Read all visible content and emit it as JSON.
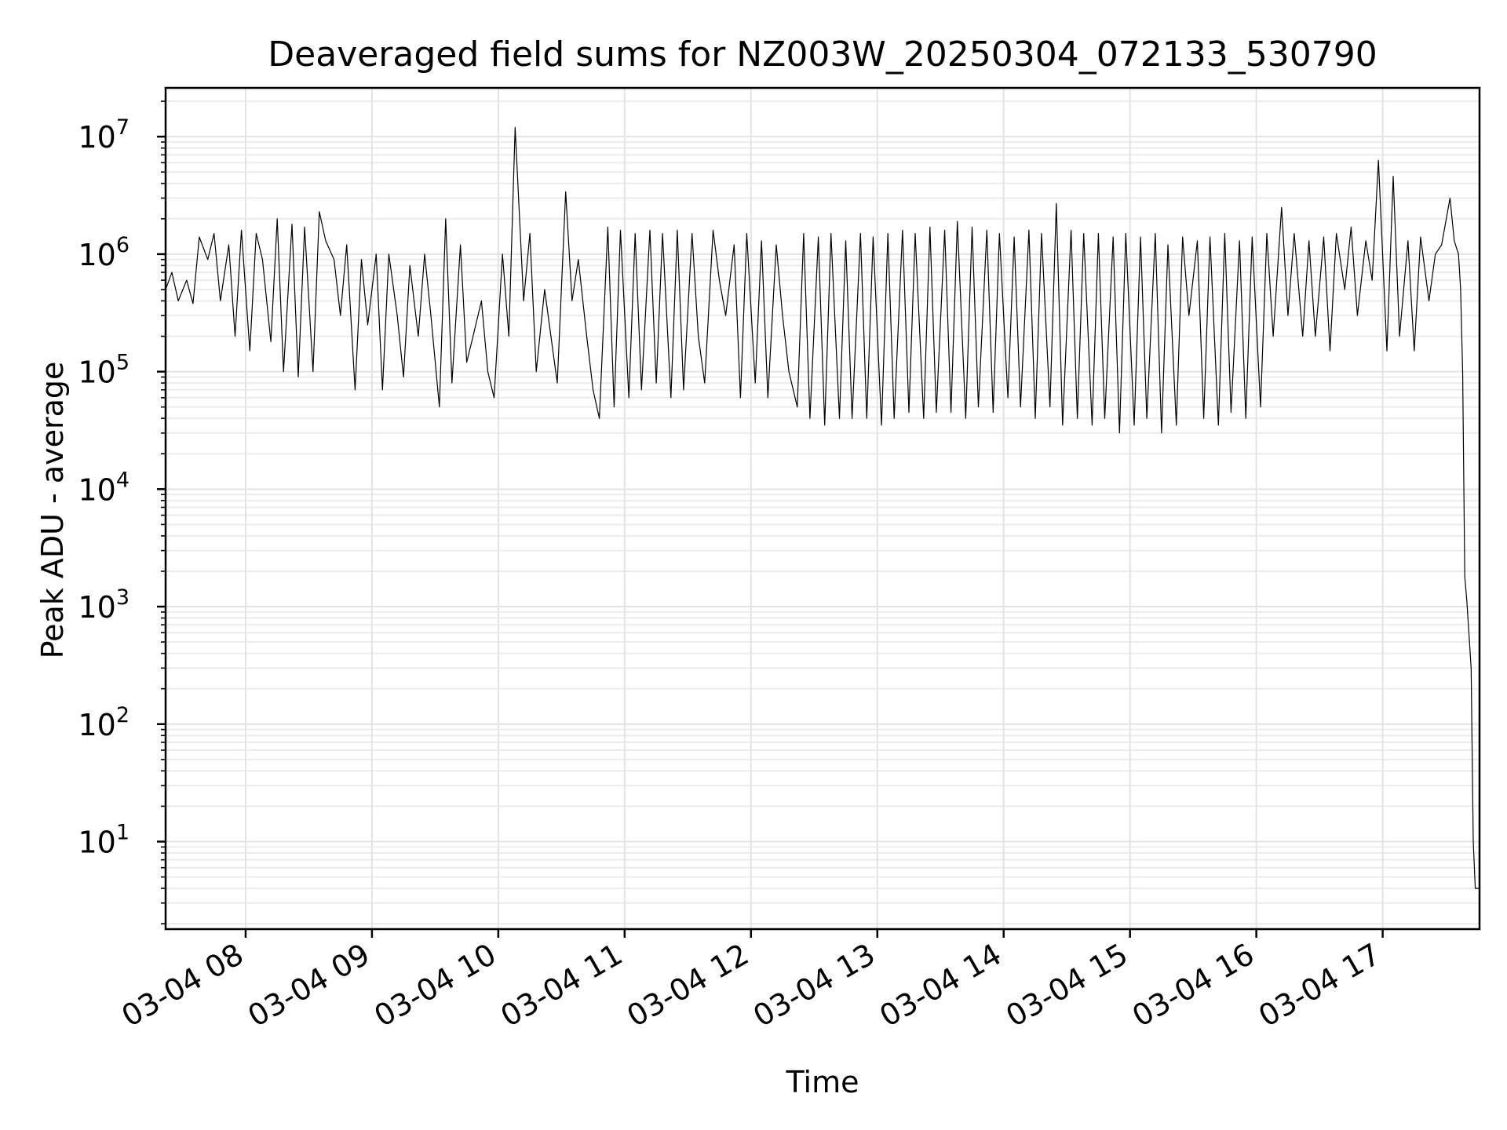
{
  "chart_data": {
    "type": "line",
    "title": "Deaveraged field sums for NZ003W_20250304_072133_530790",
    "xlabel": "Time",
    "ylabel": "Peak ADU - average",
    "yscale": "log",
    "ylim": [
      1.8,
      26000000
    ],
    "xlim": [
      "2025-03-04 07:22",
      "2025-03-04 17:46"
    ],
    "grid": true,
    "x_tick_labels": [
      "03-04 08",
      "03-04 09",
      "03-04 10",
      "03-04 11",
      "03-04 12",
      "03-04 13",
      "03-04 14",
      "03-04 15",
      "03-04 16",
      "03-04 17"
    ],
    "y_tick_labels": [
      {
        "base": "10",
        "exp": "1"
      },
      {
        "base": "10",
        "exp": "2"
      },
      {
        "base": "10",
        "exp": "3"
      },
      {
        "base": "10",
        "exp": "4"
      },
      {
        "base": "10",
        "exp": "5"
      },
      {
        "base": "10",
        "exp": "6"
      },
      {
        "base": "10",
        "exp": "7"
      }
    ],
    "series": [
      {
        "color": "#000000",
        "x": [
          "2025-03-04 07:22",
          "2025-03-04 07:25",
          "2025-03-04 07:28",
          "2025-03-04 07:32",
          "2025-03-04 07:35",
          "2025-03-04 07:38",
          "2025-03-04 07:42",
          "2025-03-04 07:45",
          "2025-03-04 07:48",
          "2025-03-04 07:52",
          "2025-03-04 07:55",
          "2025-03-04 07:58",
          "2025-03-04 08:02",
          "2025-03-04 08:05",
          "2025-03-04 08:08",
          "2025-03-04 08:12",
          "2025-03-04 08:15",
          "2025-03-04 08:18",
          "2025-03-04 08:22",
          "2025-03-04 08:25",
          "2025-03-04 08:28",
          "2025-03-04 08:32",
          "2025-03-04 08:35",
          "2025-03-04 08:38",
          "2025-03-04 08:42",
          "2025-03-04 08:45",
          "2025-03-04 08:48",
          "2025-03-04 08:52",
          "2025-03-04 08:55",
          "2025-03-04 08:58",
          "2025-03-04 09:02",
          "2025-03-04 09:05",
          "2025-03-04 09:08",
          "2025-03-04 09:12",
          "2025-03-04 09:15",
          "2025-03-04 09:18",
          "2025-03-04 09:22",
          "2025-03-04 09:25",
          "2025-03-04 09:28",
          "2025-03-04 09:32",
          "2025-03-04 09:35",
          "2025-03-04 09:38",
          "2025-03-04 09:42",
          "2025-03-04 09:45",
          "2025-03-04 09:48",
          "2025-03-04 09:52",
          "2025-03-04 09:55",
          "2025-03-04 09:58",
          "2025-03-04 10:02",
          "2025-03-04 10:05",
          "2025-03-04 10:08",
          "2025-03-04 10:12",
          "2025-03-04 10:15",
          "2025-03-04 10:18",
          "2025-03-04 10:22",
          "2025-03-04 10:25",
          "2025-03-04 10:28",
          "2025-03-04 10:32",
          "2025-03-04 10:35",
          "2025-03-04 10:38",
          "2025-03-04 10:42",
          "2025-03-04 10:45",
          "2025-03-04 10:48",
          "2025-03-04 10:52",
          "2025-03-04 10:55",
          "2025-03-04 10:58",
          "2025-03-04 11:02",
          "2025-03-04 11:05",
          "2025-03-04 11:08",
          "2025-03-04 11:12",
          "2025-03-04 11:15",
          "2025-03-04 11:18",
          "2025-03-04 11:22",
          "2025-03-04 11:25",
          "2025-03-04 11:28",
          "2025-03-04 11:32",
          "2025-03-04 11:35",
          "2025-03-04 11:38",
          "2025-03-04 11:42",
          "2025-03-04 11:45",
          "2025-03-04 11:48",
          "2025-03-04 11:52",
          "2025-03-04 11:55",
          "2025-03-04 11:58",
          "2025-03-04 12:02",
          "2025-03-04 12:05",
          "2025-03-04 12:08",
          "2025-03-04 12:12",
          "2025-03-04 12:15",
          "2025-03-04 12:18",
          "2025-03-04 12:22",
          "2025-03-04 12:25",
          "2025-03-04 12:28",
          "2025-03-04 12:32",
          "2025-03-04 12:35",
          "2025-03-04 12:38",
          "2025-03-04 12:42",
          "2025-03-04 12:45",
          "2025-03-04 12:48",
          "2025-03-04 12:52",
          "2025-03-04 12:55",
          "2025-03-04 12:58",
          "2025-03-04 13:02",
          "2025-03-04 13:05",
          "2025-03-04 13:08",
          "2025-03-04 13:12",
          "2025-03-04 13:15",
          "2025-03-04 13:18",
          "2025-03-04 13:22",
          "2025-03-04 13:25",
          "2025-03-04 13:28",
          "2025-03-04 13:32",
          "2025-03-04 13:35",
          "2025-03-04 13:38",
          "2025-03-04 13:42",
          "2025-03-04 13:45",
          "2025-03-04 13:48",
          "2025-03-04 13:52",
          "2025-03-04 13:55",
          "2025-03-04 13:58",
          "2025-03-04 14:02",
          "2025-03-04 14:05",
          "2025-03-04 14:08",
          "2025-03-04 14:12",
          "2025-03-04 14:15",
          "2025-03-04 14:18",
          "2025-03-04 14:22",
          "2025-03-04 14:25",
          "2025-03-04 14:28",
          "2025-03-04 14:32",
          "2025-03-04 14:35",
          "2025-03-04 14:38",
          "2025-03-04 14:42",
          "2025-03-04 14:45",
          "2025-03-04 14:48",
          "2025-03-04 14:52",
          "2025-03-04 14:55",
          "2025-03-04 14:58",
          "2025-03-04 15:02",
          "2025-03-04 15:05",
          "2025-03-04 15:08",
          "2025-03-04 15:12",
          "2025-03-04 15:15",
          "2025-03-04 15:18",
          "2025-03-04 15:22",
          "2025-03-04 15:25",
          "2025-03-04 15:28",
          "2025-03-04 15:32",
          "2025-03-04 15:35",
          "2025-03-04 15:38",
          "2025-03-04 15:42",
          "2025-03-04 15:45",
          "2025-03-04 15:48",
          "2025-03-04 15:52",
          "2025-03-04 15:55",
          "2025-03-04 15:58",
          "2025-03-04 16:02",
          "2025-03-04 16:05",
          "2025-03-04 16:08",
          "2025-03-04 16:12",
          "2025-03-04 16:15",
          "2025-03-04 16:18",
          "2025-03-04 16:22",
          "2025-03-04 16:25",
          "2025-03-04 16:28",
          "2025-03-04 16:32",
          "2025-03-04 16:35",
          "2025-03-04 16:38",
          "2025-03-04 16:42",
          "2025-03-04 16:45",
          "2025-03-04 16:48",
          "2025-03-04 16:52",
          "2025-03-04 16:55",
          "2025-03-04 16:58",
          "2025-03-04 17:02",
          "2025-03-04 17:05",
          "2025-03-04 17:08",
          "2025-03-04 17:12",
          "2025-03-04 17:15",
          "2025-03-04 17:18",
          "2025-03-04 17:22",
          "2025-03-04 17:25",
          "2025-03-04 17:28",
          "2025-03-04 17:32",
          "2025-03-04 17:34",
          "2025-03-04 17:36",
          "2025-03-04 17:37",
          "2025-03-04 17:38",
          "2025-03-04 17:39",
          "2025-03-04 17:40",
          "2025-03-04 17:42",
          "2025-03-04 17:43",
          "2025-03-04 17:44",
          "2025-03-04 17:46"
        ],
        "y": [
          500000,
          700000,
          400000,
          600000,
          380000,
          1400000,
          900000,
          1500000,
          400000,
          1200000,
          200000,
          1600000,
          150000,
          1500000,
          900000,
          180000,
          2000000,
          100000,
          1800000,
          90000,
          1700000,
          100000,
          2300000,
          1300000,
          900000,
          300000,
          1200000,
          70000,
          900000,
          250000,
          1000000,
          70000,
          1000000,
          300000,
          90000,
          800000,
          200000,
          1000000,
          300000,
          50000,
          2000000,
          80000,
          1200000,
          120000,
          200000,
          400000,
          100000,
          60000,
          1000000,
          200000,
          12000000,
          400000,
          1500000,
          100000,
          500000,
          200000,
          80000,
          3400000,
          400000,
          900000,
          200000,
          70000,
          40000,
          1700000,
          50000,
          1600000,
          60000,
          1500000,
          70000,
          1600000,
          80000,
          1500000,
          60000,
          1600000,
          70000,
          1500000,
          200000,
          80000,
          1600000,
          600000,
          300000,
          1200000,
          60000,
          1500000,
          80000,
          1300000,
          60000,
          1200000,
          300000,
          100000,
          50000,
          1500000,
          40000,
          1400000,
          35000,
          1500000,
          40000,
          1300000,
          40000,
          1500000,
          40000,
          1400000,
          35000,
          1500000,
          40000,
          1600000,
          45000,
          1500000,
          40000,
          1700000,
          45000,
          1600000,
          45000,
          1900000,
          40000,
          1700000,
          50000,
          1600000,
          45000,
          1500000,
          60000,
          1400000,
          50000,
          1600000,
          40000,
          1500000,
          50000,
          2700000,
          35000,
          1600000,
          40000,
          1500000,
          35000,
          1500000,
          40000,
          1400000,
          30000,
          1500000,
          35000,
          1400000,
          40000,
          1500000,
          30000,
          1200000,
          35000,
          1400000,
          300000,
          1300000,
          40000,
          1400000,
          35000,
          1500000,
          45000,
          1300000,
          40000,
          1400000,
          50000,
          1500000,
          200000,
          2500000,
          300000,
          1500000,
          200000,
          1300000,
          200000,
          1400000,
          150000,
          1500000,
          500000,
          1700000,
          300000,
          1300000,
          600000,
          6300000,
          150000,
          4600000,
          200000,
          1300000,
          150000,
          1400000,
          400000,
          1000000,
          1200000,
          3000000,
          1300000,
          1000000,
          500000,
          100000,
          1800,
          1100,
          300,
          10,
          4,
          4
        ]
      }
    ]
  }
}
